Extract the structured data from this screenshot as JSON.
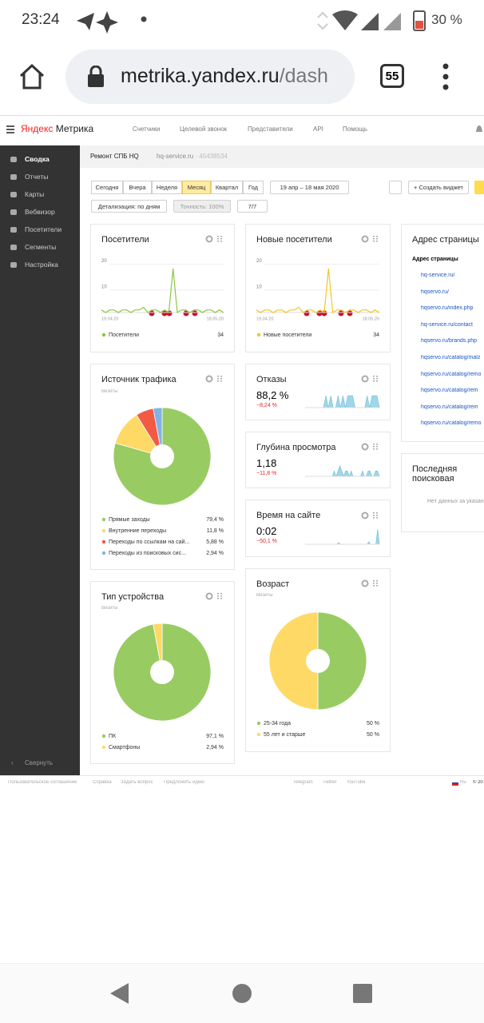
{
  "status_bar": {
    "time": "23:24",
    "battery": "30 %"
  },
  "browser": {
    "url_host": "metrika.yandex.ru",
    "url_path": "/dash",
    "tab_count": "55"
  },
  "header": {
    "logo_brand": "Яндекс",
    "logo_product": "Метрика",
    "nav": [
      "Счетчики",
      "Целевой звонок",
      "Представители",
      "API",
      "Помощь"
    ]
  },
  "sidebar": {
    "items": [
      "Сводка",
      "Отчеты",
      "Карты",
      "Вебвизор",
      "Посетители",
      "Сегменты",
      "Настройка"
    ],
    "collapse": "Свернуть"
  },
  "counter": {
    "name": "Ремонт СПБ HQ",
    "site": "hq-service.ru",
    "id": "· 45438534"
  },
  "toolbar": {
    "periods": [
      "Сегодня",
      "Вчера",
      "Неделя",
      "Месяц",
      "Квартал",
      "Год"
    ],
    "active_period": "Месяц",
    "date_range": "19 апр – 18 мая 2020",
    "create_widget": "+ Создать виджет",
    "detail": "Детализация: по дням",
    "accuracy": "Точность: 100%",
    "segments": "7/7"
  },
  "widgets": {
    "visitors": {
      "title": "Посетители",
      "type": "line",
      "color": "#8cc63f",
      "ylim": [
        0,
        22
      ],
      "yticks": [
        10,
        20
      ],
      "x_start": "19.04.20",
      "x_end": "18.05.20",
      "values": [
        1,
        0,
        1,
        1,
        0,
        1,
        1,
        0,
        1,
        1,
        2,
        0,
        1,
        1,
        0,
        1,
        0,
        17,
        0,
        1,
        1,
        0,
        1,
        1,
        0,
        1,
        1,
        0,
        1,
        0
      ],
      "legend": "Посетители",
      "total": 34
    },
    "new_visitors": {
      "title": "Новые посетители",
      "type": "line",
      "color": "#f2c61f",
      "ylim": [
        0,
        22
      ],
      "yticks": [
        10,
        20
      ],
      "x_start": "19.04.20",
      "x_end": "18.05.20",
      "values": [
        1,
        0,
        1,
        1,
        0,
        1,
        1,
        0,
        1,
        1,
        2,
        0,
        1,
        1,
        0,
        1,
        0,
        17,
        0,
        1,
        1,
        0,
        1,
        1,
        0,
        1,
        1,
        0,
        1,
        0
      ],
      "legend": "Новые посетители",
      "total": 34
    },
    "traffic": {
      "title": "Источник трафика",
      "subtitle": "Визиты",
      "type": "pie",
      "slices": [
        {
          "name": "Прямые заходы",
          "value": 79.4,
          "label": "79,4 %",
          "color": "#98cc62"
        },
        {
          "name": "Внутренние переходы",
          "value": 11.8,
          "label": "11,8 %",
          "color": "#ffd966"
        },
        {
          "name": "Переходы по ссылкам на сай...",
          "value": 5.88,
          "label": "5,88 %",
          "color": "#f25a45"
        },
        {
          "name": "Переходы из поисковых сис...",
          "value": 2.94,
          "label": "2,94 %",
          "color": "#80b3e6"
        }
      ]
    },
    "device": {
      "title": "Тип устройства",
      "subtitle": "Визиты",
      "type": "pie",
      "slices": [
        {
          "name": "ПК",
          "value": 97.1,
          "label": "97,1 %",
          "color": "#98cc62"
        },
        {
          "name": "Смартфоны",
          "value": 2.94,
          "label": "2,94 %",
          "color": "#ffd966"
        }
      ]
    },
    "bounce": {
      "title": "Отказы",
      "value": "88,2 %",
      "change": "−8,24 %",
      "type": "area",
      "color": "#9fd6e8",
      "ylim": [
        0,
        100
      ],
      "values": [
        0,
        0,
        100,
        0,
        100,
        0,
        0,
        100,
        0,
        100,
        0,
        100,
        100,
        100,
        0,
        0,
        0,
        0,
        0,
        100,
        0,
        100,
        100,
        100,
        0
      ]
    },
    "depth": {
      "title": "Глубина просмотра",
      "value": "1,18",
      "change": "−11,8 %",
      "type": "area",
      "color": "#9fd6e8",
      "ylim": [
        0,
        3
      ],
      "values": [
        0,
        0,
        0,
        0,
        0,
        0,
        0,
        1,
        0,
        1,
        2,
        1,
        0,
        1,
        1,
        0,
        1,
        0,
        0,
        0,
        0,
        0,
        1,
        0,
        0,
        1,
        1,
        0,
        0,
        1,
        1,
        0
      ]
    },
    "time": {
      "title": "Время на сайте",
      "value": "0:02",
      "change": "−50,1 %",
      "type": "area",
      "color": "#9fd6e8",
      "ylim": [
        0,
        20
      ],
      "values": [
        0,
        0,
        0,
        0,
        0,
        0,
        0,
        0,
        0,
        0,
        2,
        0,
        0,
        0,
        0,
        0,
        0,
        0,
        0,
        0,
        0,
        0,
        0,
        0,
        0,
        0,
        0,
        3,
        0,
        0,
        0,
        0,
        18,
        0
      ]
    },
    "age": {
      "title": "Возраст",
      "subtitle": "Визиты",
      "type": "pie",
      "slices": [
        {
          "name": "25-34 года",
          "value": 50,
          "label": "50 %",
          "color": "#98cc62"
        },
        {
          "name": "55 лет и старше",
          "value": 50,
          "label": "50 %",
          "color": "#ffd966"
        }
      ]
    },
    "pages": {
      "title": "Адрес страницы",
      "column": "Адрес страницы",
      "urls": [
        "hq-service.ru/",
        "hqservo.ru/",
        "hqservo.ru/index.php",
        "hq-service.ru/contact",
        "hqservo.ru/brands.php",
        "hqservo.ru/catalog/malz",
        "hqservo.ru/catalog/remo",
        "hqservo.ru/catalog/rem",
        "hqservo.ru/catalog/rem",
        "hqservo.ru/catalog/remo"
      ]
    },
    "search": {
      "title": "Последняя поисковая",
      "empty": "Нет данных за указан"
    }
  },
  "footer": {
    "left": [
      "Пользовательское соглашение",
      "Справка",
      "Задать вопрос",
      "Предложить идею"
    ],
    "social": [
      "Telegram",
      "Twitter",
      "YouTube"
    ],
    "lang": "Ru",
    "copyright": "© 20"
  }
}
